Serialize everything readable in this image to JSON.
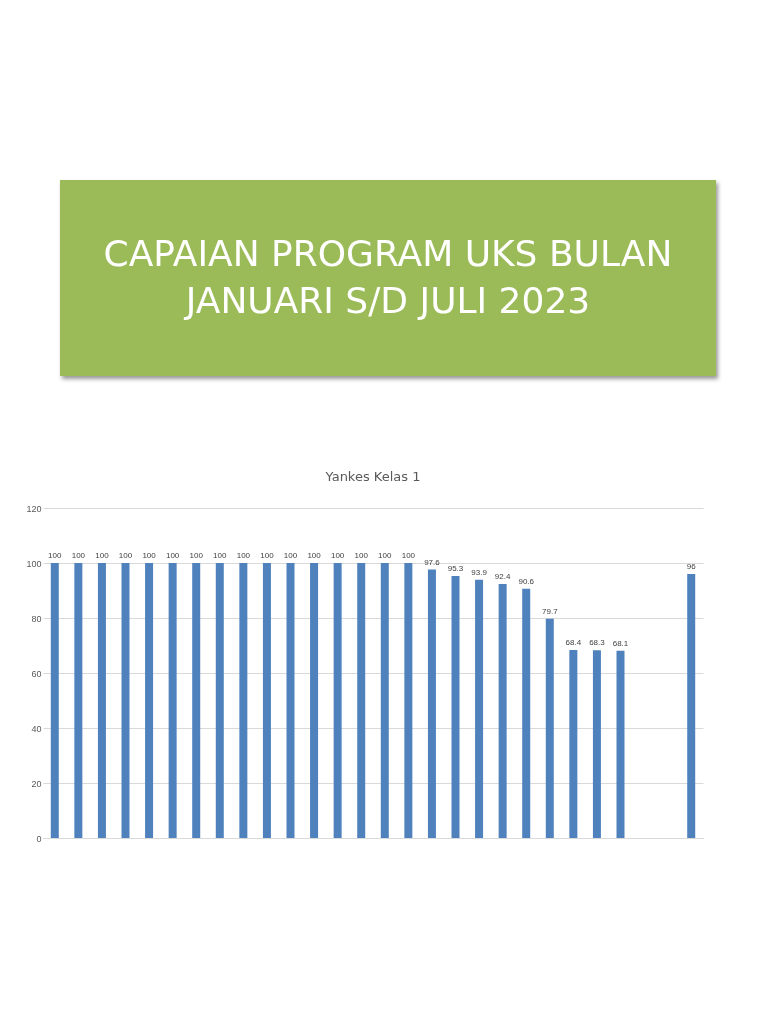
{
  "chart_data": {
    "type": "bar",
    "title": "CAPAIAN PROGRAM UKS BULAN JANUARI S/D JULI 2023",
    "subtitle": "Yankes Kelas 1",
    "categories": [
      null,
      null,
      null,
      null,
      null,
      null,
      null,
      null,
      null,
      null,
      null,
      null,
      null,
      null,
      null,
      null,
      null,
      null,
      null,
      null,
      null,
      null,
      null,
      null,
      null,
      null,
      null,
      null
    ],
    "values": [
      100,
      100,
      100,
      100,
      100,
      100,
      100,
      100,
      100,
      100,
      100,
      100,
      100,
      100,
      100,
      100,
      97.6,
      95.3,
      93.9,
      92.4,
      90.6,
      79.7,
      68.4,
      68.3,
      68.1,
      null,
      null,
      96
    ],
    "color": "#4f81bd",
    "ylim": [
      0,
      120
    ],
    "yticks": [
      0,
      20,
      40,
      60,
      80,
      100,
      120
    ],
    "grid": "y",
    "data_labels": true
  }
}
